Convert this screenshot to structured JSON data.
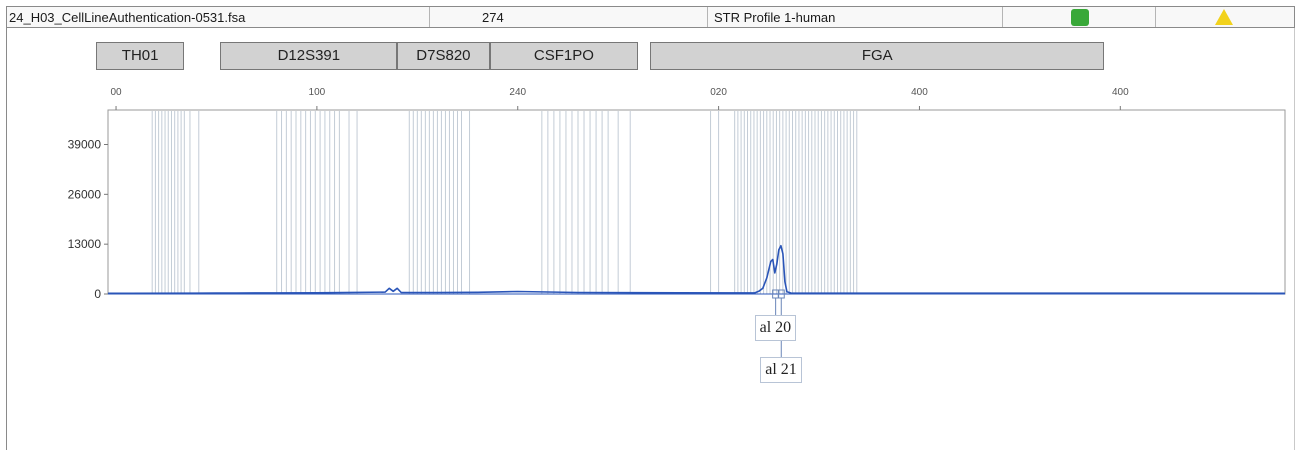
{
  "header": {
    "filename": "24_H03_CellLineAuthentication-0531.fsa",
    "size_value": "274",
    "profile": "STR Profile 1-human",
    "status_green": "#38a838",
    "status_yellow": "#f2d21c"
  },
  "markers": [
    {
      "label": "TH01",
      "start": 55,
      "end": 77
    },
    {
      "label": "D12S391",
      "start": 86,
      "end": 130
    },
    {
      "label": "D7S820",
      "start": 130,
      "end": 153
    },
    {
      "label": "CSF1PO",
      "start": 153,
      "end": 190
    },
    {
      "label": "FGA",
      "start": 193,
      "end": 306
    }
  ],
  "chart_data": {
    "type": "line",
    "x_tick_labels": [
      "00",
      "100",
      "240",
      "020",
      "400",
      "400"
    ],
    "x_tick_values": [
      60,
      110,
      160,
      210,
      260,
      310
    ],
    "xlim": [
      58,
      351
    ],
    "ylim": [
      0,
      48000
    ],
    "y_ticks": [
      0,
      13000,
      26000,
      39000
    ],
    "y_tick_labels": [
      "0",
      "13000",
      "26000",
      "39000"
    ],
    "grid": false,
    "series": [
      {
        "color": "#2a55b8",
        "x": [
          58,
          80,
          85,
          90,
          95,
          100,
          110,
          127,
          128,
          129,
          130,
          131,
          140,
          150,
          160,
          175,
          200,
          219,
          220,
          221,
          222,
          223,
          223.5,
          224,
          224.5,
          225,
          225.5,
          226,
          226.5,
          227,
          228,
          240,
          260,
          300,
          351
        ],
        "y": [
          180,
          220,
          260,
          240,
          300,
          280,
          320,
          500,
          1500,
          700,
          1500,
          400,
          380,
          450,
          650,
          380,
          320,
          300,
          700,
          1500,
          4200,
          8500,
          9000,
          5500,
          7800,
          11500,
          12600,
          10500,
          3200,
          600,
          250,
          220,
          220,
          200,
          180
        ]
      }
    ],
    "bins": [
      {
        "marker": "TH01",
        "x": [
          69,
          69.8,
          70.6,
          71.4,
          72.2,
          73,
          73.8,
          74.6,
          75.4,
          76.2,
          77,
          78.4,
          80.6
        ]
      },
      {
        "marker": "D12S391",
        "x": [
          100,
          101.2,
          102.4,
          103.6,
          104.8,
          106,
          107.2,
          108.4,
          109.6,
          110.8,
          112,
          113.2,
          114.4,
          115.6,
          118,
          120
        ]
      },
      {
        "marker": "D7S820",
        "x": [
          133,
          134,
          135,
          136,
          137,
          138,
          139,
          140,
          141,
          142,
          143,
          144,
          145,
          146,
          148
        ]
      },
      {
        "marker": "CSF1PO",
        "x": [
          166,
          167.5,
          169,
          170.5,
          172,
          173.5,
          175,
          176.5,
          178,
          179.5,
          181,
          182.5,
          185,
          188
        ]
      },
      {
        "marker": "FGA",
        "x": [
          208,
          210,
          214,
          214.8,
          215.6,
          216.4,
          217.2,
          218,
          218.8,
          219.6,
          220.4,
          221.2,
          222,
          222.8,
          223.6,
          224.4,
          225.2,
          226,
          226.8,
          227.6,
          228.4,
          229.2,
          230,
          230.8,
          231.6,
          232.4,
          233.2,
          234,
          234.8,
          235.6,
          236.4,
          237.2,
          238,
          238.8,
          239.6,
          240.4,
          241.2,
          242,
          242.8,
          243.6,
          244.4
        ]
      }
    ],
    "allele_calls": [
      {
        "label": "al 20",
        "x": 224.2
      },
      {
        "label": "al 21",
        "x": 225.6
      }
    ]
  }
}
